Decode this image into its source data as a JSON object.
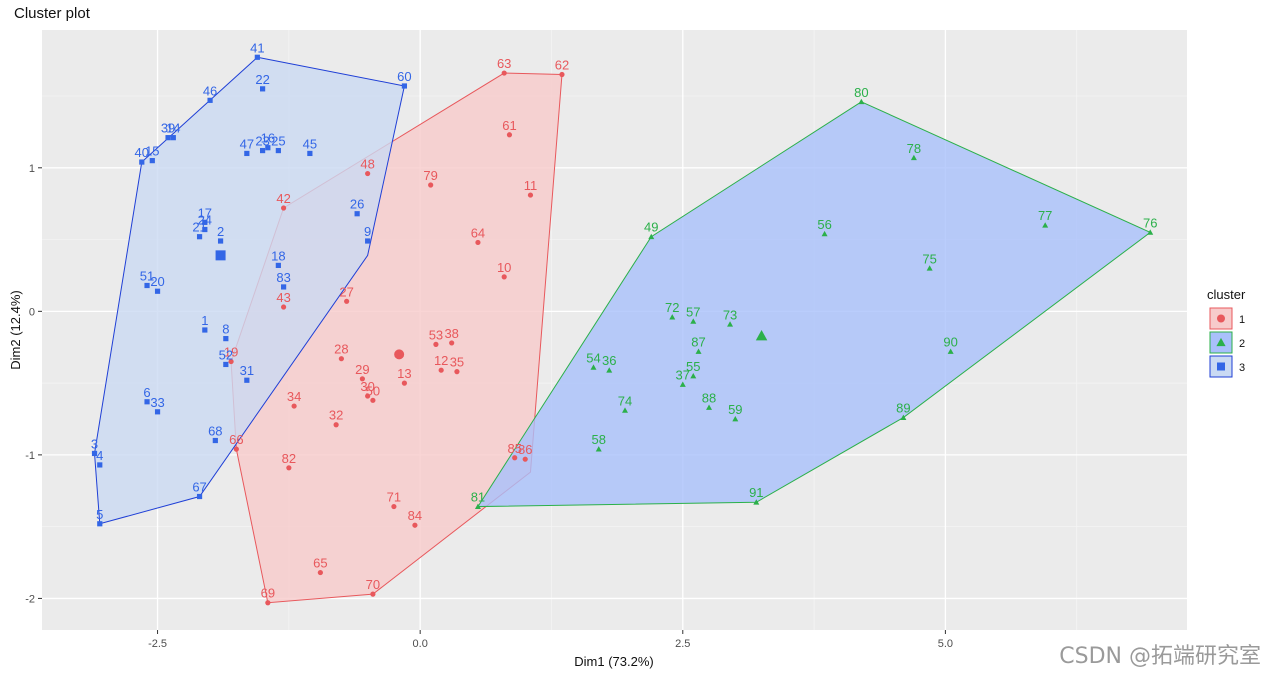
{
  "chart_data": {
    "type": "scatter",
    "title": "Cluster plot",
    "xlabel": "Dim1 (73.2%)",
    "ylabel": "Dim2 (12.4%)",
    "xlim": [
      -3.6,
      7.3
    ],
    "ylim": [
      -2.22,
      1.96
    ],
    "x_ticks": [
      -2.5,
      0.0,
      2.5,
      5.0
    ],
    "x_tick_labels": [
      "-2.5",
      "0.0",
      "2.5",
      "5.0"
    ],
    "y_ticks": [
      -2,
      -1,
      0,
      1
    ],
    "y_tick_labels": [
      "-2",
      "-1",
      "0",
      "1"
    ],
    "grid": true,
    "legend": {
      "title": "cluster",
      "position": "right"
    },
    "colors": {
      "1": "#E8585C",
      "2": "#2BB04A",
      "3": "#3366E6"
    },
    "hull_fills": {
      "1": "#F7CBCB",
      "2": "#A9C0FB",
      "3": "#CADAF3"
    },
    "hull_strokes": {
      "1": "#E8585C",
      "2": "#2BB04A",
      "3": "#1F3FD6"
    },
    "series": [
      {
        "name": "1",
        "shape": "circle",
        "centroid": [
          -0.2,
          -0.3
        ],
        "hull": [
          [
            0.8,
            1.66
          ],
          [
            1.35,
            1.65
          ],
          [
            1.05,
            -1.12
          ],
          [
            -0.45,
            -1.97
          ],
          [
            -1.45,
            -2.03
          ],
          [
            -1.75,
            -0.96
          ],
          [
            -1.8,
            -0.35
          ],
          [
            -1.3,
            0.72
          ],
          [
            0.8,
            1.66
          ]
        ],
        "points": [
          {
            "id": "63",
            "x": 0.8,
            "y": 1.66
          },
          {
            "id": "62",
            "x": 1.35,
            "y": 1.65
          },
          {
            "id": "61",
            "x": 0.85,
            "y": 1.23
          },
          {
            "id": "48",
            "x": -0.5,
            "y": 0.96
          },
          {
            "id": "79",
            "x": 0.1,
            "y": 0.88
          },
          {
            "id": "11",
            "x": 1.05,
            "y": 0.81
          },
          {
            "id": "42",
            "x": -1.3,
            "y": 0.72
          },
          {
            "id": "64",
            "x": 0.55,
            "y": 0.48
          },
          {
            "id": "10",
            "x": 0.8,
            "y": 0.24
          },
          {
            "id": "27",
            "x": -0.7,
            "y": 0.07
          },
          {
            "id": "43",
            "x": -1.3,
            "y": 0.03
          },
          {
            "id": "53",
            "x": 0.15,
            "y": -0.23
          },
          {
            "id": "38",
            "x": 0.3,
            "y": -0.22
          },
          {
            "id": "19",
            "x": -1.8,
            "y": -0.35
          },
          {
            "id": "28",
            "x": -0.75,
            "y": -0.33
          },
          {
            "id": "12",
            "x": 0.2,
            "y": -0.41
          },
          {
            "id": "35",
            "x": 0.35,
            "y": -0.42
          },
          {
            "id": "29",
            "x": -0.55,
            "y": -0.47
          },
          {
            "id": "13",
            "x": -0.15,
            "y": -0.5
          },
          {
            "id": "30",
            "x": -0.5,
            "y": -0.59
          },
          {
            "id": "50",
            "x": -0.45,
            "y": -0.62
          },
          {
            "id": "34",
            "x": -1.2,
            "y": -0.66
          },
          {
            "id": "32",
            "x": -0.8,
            "y": -0.79
          },
          {
            "id": "66",
            "x": -1.75,
            "y": -0.96
          },
          {
            "id": "85",
            "x": 0.9,
            "y": -1.02
          },
          {
            "id": "86",
            "x": 1.0,
            "y": -1.03
          },
          {
            "id": "82",
            "x": -1.25,
            "y": -1.09
          },
          {
            "id": "71",
            "x": -0.25,
            "y": -1.36
          },
          {
            "id": "84",
            "x": -0.05,
            "y": -1.49
          },
          {
            "id": "65",
            "x": -0.95,
            "y": -1.82
          },
          {
            "id": "70",
            "x": -0.45,
            "y": -1.97
          },
          {
            "id": "69",
            "x": -1.45,
            "y": -2.03
          }
        ]
      },
      {
        "name": "2",
        "shape": "triangle",
        "centroid": [
          3.25,
          -0.17
        ],
        "hull": [
          [
            4.2,
            1.46
          ],
          [
            6.95,
            0.55
          ],
          [
            4.6,
            -0.74
          ],
          [
            3.2,
            -1.33
          ],
          [
            0.55,
            -1.36
          ],
          [
            2.2,
            0.52
          ],
          [
            4.2,
            1.46
          ]
        ],
        "points": [
          {
            "id": "80",
            "x": 4.2,
            "y": 1.46
          },
          {
            "id": "78",
            "x": 4.7,
            "y": 1.07
          },
          {
            "id": "77",
            "x": 5.95,
            "y": 0.6
          },
          {
            "id": "76",
            "x": 6.95,
            "y": 0.55
          },
          {
            "id": "56",
            "x": 3.85,
            "y": 0.54
          },
          {
            "id": "49",
            "x": 2.2,
            "y": 0.52
          },
          {
            "id": "75",
            "x": 4.85,
            "y": 0.3
          },
          {
            "id": "72",
            "x": 2.4,
            "y": -0.04
          },
          {
            "id": "57",
            "x": 2.6,
            "y": -0.07
          },
          {
            "id": "73",
            "x": 2.95,
            "y": -0.09
          },
          {
            "id": "90",
            "x": 5.05,
            "y": -0.28
          },
          {
            "id": "87",
            "x": 2.65,
            "y": -0.28
          },
          {
            "id": "54",
            "x": 1.65,
            "y": -0.39
          },
          {
            "id": "36",
            "x": 1.8,
            "y": -0.41
          },
          {
            "id": "55",
            "x": 2.6,
            "y": -0.45
          },
          {
            "id": "37",
            "x": 2.5,
            "y": -0.51
          },
          {
            "id": "74",
            "x": 1.95,
            "y": -0.69
          },
          {
            "id": "88",
            "x": 2.75,
            "y": -0.67
          },
          {
            "id": "59",
            "x": 3.0,
            "y": -0.75
          },
          {
            "id": "89",
            "x": 4.6,
            "y": -0.74
          },
          {
            "id": "58",
            "x": 1.7,
            "y": -0.96
          },
          {
            "id": "91",
            "x": 3.2,
            "y": -1.33
          },
          {
            "id": "81",
            "x": 0.55,
            "y": -1.36
          }
        ]
      },
      {
        "name": "3",
        "shape": "square",
        "centroid": [
          -1.9,
          0.39
        ],
        "hull": [
          [
            -1.55,
            1.77
          ],
          [
            -0.15,
            1.57
          ],
          [
            -0.5,
            0.39
          ],
          [
            -2.1,
            -1.29
          ],
          [
            -3.05,
            -1.48
          ],
          [
            -3.1,
            -0.99
          ],
          [
            -2.65,
            1.04
          ],
          [
            -1.55,
            1.77
          ]
        ],
        "points": [
          {
            "id": "41",
            "x": -1.55,
            "y": 1.77
          },
          {
            "id": "22",
            "x": -1.5,
            "y": 1.55
          },
          {
            "id": "60",
            "x": -0.15,
            "y": 1.57
          },
          {
            "id": "46",
            "x": -2.0,
            "y": 1.47
          },
          {
            "id": "39",
            "x": -2.4,
            "y": 1.21
          },
          {
            "id": "14",
            "x": -2.35,
            "y": 1.21
          },
          {
            "id": "47",
            "x": -1.65,
            "y": 1.1
          },
          {
            "id": "16",
            "x": -1.45,
            "y": 1.14
          },
          {
            "id": "23",
            "x": -1.5,
            "y": 1.12
          },
          {
            "id": "25",
            "x": -1.35,
            "y": 1.12
          },
          {
            "id": "45",
            "x": -1.05,
            "y": 1.1
          },
          {
            "id": "40",
            "x": -2.65,
            "y": 1.04
          },
          {
            "id": "15",
            "x": -2.55,
            "y": 1.05
          },
          {
            "id": "26",
            "x": -0.6,
            "y": 0.68
          },
          {
            "id": "17",
            "x": -2.05,
            "y": 0.62
          },
          {
            "id": "24",
            "x": -2.05,
            "y": 0.57
          },
          {
            "id": "21",
            "x": -2.1,
            "y": 0.52
          },
          {
            "id": "2",
            "x": -1.9,
            "y": 0.49
          },
          {
            "id": "9",
            "x": -0.5,
            "y": 0.49
          },
          {
            "id": "18",
            "x": -1.35,
            "y": 0.32
          },
          {
            "id": "51",
            "x": -2.6,
            "y": 0.18
          },
          {
            "id": "20",
            "x": -2.5,
            "y": 0.14
          },
          {
            "id": "83",
            "x": -1.3,
            "y": 0.17
          },
          {
            "id": "1",
            "x": -2.05,
            "y": -0.13
          },
          {
            "id": "8",
            "x": -1.85,
            "y": -0.19
          },
          {
            "id": "52",
            "x": -1.85,
            "y": -0.37
          },
          {
            "id": "31",
            "x": -1.65,
            "y": -0.48
          },
          {
            "id": "6",
            "x": -2.6,
            "y": -0.63
          },
          {
            "id": "33",
            "x": -2.5,
            "y": -0.7
          },
          {
            "id": "68",
            "x": -1.95,
            "y": -0.9
          },
          {
            "id": "3",
            "x": -3.1,
            "y": -0.99
          },
          {
            "id": "4",
            "x": -3.05,
            "y": -1.07
          },
          {
            "id": "67",
            "x": -2.1,
            "y": -1.29
          },
          {
            "id": "5",
            "x": -3.05,
            "y": -1.48
          }
        ]
      }
    ]
  },
  "watermark": "CSDN @拓端研究室"
}
